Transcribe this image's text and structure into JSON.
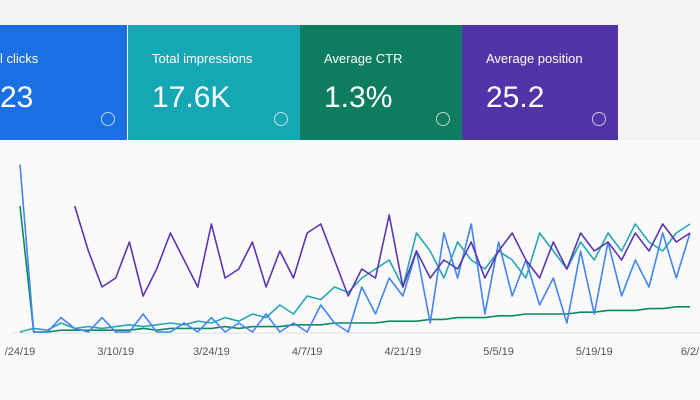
{
  "cards": [
    {
      "label": "l clicks",
      "value": "23",
      "color": "#1a6fe3"
    },
    {
      "label": "Total impressions",
      "value": "17.6K",
      "color": "#16a7b5"
    },
    {
      "label": "Average CTR",
      "value": "1.3%",
      "color": "#0e7d5f"
    },
    {
      "label": "Average position",
      "value": "25.2",
      "color": "#5234a8"
    }
  ],
  "chart_data": {
    "type": "line",
    "categories": [
      "/24/19",
      null,
      null,
      null,
      null,
      null,
      null,
      "3/10/19",
      null,
      null,
      null,
      null,
      null,
      null,
      "3/24/19",
      null,
      null,
      null,
      null,
      null,
      null,
      "4/7/19",
      null,
      null,
      null,
      null,
      null,
      null,
      "4/21/19",
      null,
      null,
      null,
      null,
      null,
      null,
      "5/5/19",
      null,
      null,
      null,
      null,
      null,
      null,
      "5/19/19",
      null,
      null,
      null,
      null,
      null,
      null,
      "6/2/"
    ],
    "ylim": [
      0,
      100
    ],
    "series": [
      {
        "color": "#0f8a5f",
        "values": [
          70,
          0,
          0,
          1,
          1,
          1,
          1,
          1,
          1,
          2,
          1,
          2,
          2,
          2,
          2,
          3,
          2,
          3,
          3,
          3,
          4,
          4,
          4,
          5,
          5,
          5,
          5,
          6,
          6,
          6,
          7,
          7,
          8,
          8,
          8,
          9,
          9,
          10,
          10,
          10,
          10,
          11,
          11,
          12,
          12,
          12,
          13,
          13,
          14,
          14
        ]
      },
      {
        "color": "#26a6b8",
        "values": [
          0,
          2,
          1,
          5,
          2,
          3,
          2,
          3,
          4,
          3,
          4,
          5,
          4,
          6,
          5,
          8,
          6,
          10,
          8,
          15,
          10,
          20,
          18,
          25,
          22,
          30,
          35,
          40,
          25,
          55,
          45,
          30,
          50,
          40,
          35,
          45,
          40,
          30,
          55,
          45,
          35,
          50,
          40,
          55,
          45,
          60,
          50,
          45,
          55,
          60
        ]
      },
      {
        "color": "#4285f4",
        "values": [
          93,
          0,
          0,
          8,
          2,
          0,
          8,
          0,
          0,
          10,
          0,
          0,
          5,
          0,
          8,
          0,
          5,
          0,
          10,
          0,
          5,
          0,
          15,
          5,
          0,
          25,
          10,
          30,
          20,
          45,
          5,
          55,
          30,
          60,
          10,
          50,
          20,
          40,
          15,
          30,
          5,
          45,
          10,
          50,
          20,
          40,
          25,
          55,
          30,
          55
        ]
      },
      {
        "color": "#5e35b1",
        "values": [
          null,
          null,
          null,
          null,
          70,
          45,
          25,
          30,
          50,
          20,
          35,
          55,
          40,
          25,
          60,
          30,
          35,
          50,
          25,
          45,
          30,
          55,
          60,
          40,
          20,
          35,
          30,
          65,
          25,
          45,
          30,
          40,
          35,
          50,
          30,
          45,
          55,
          40,
          30,
          50,
          35,
          55,
          45,
          50,
          40,
          55,
          45,
          60,
          50,
          55
        ]
      }
    ]
  }
}
